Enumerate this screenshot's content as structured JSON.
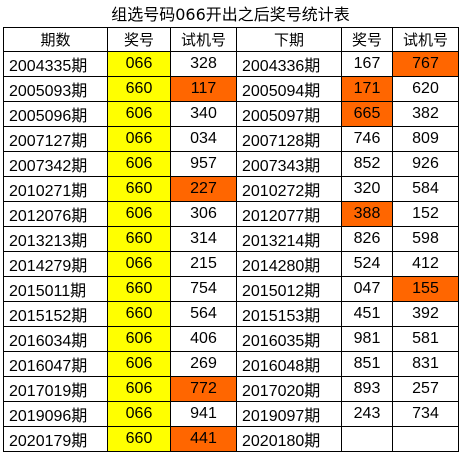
{
  "title": "组选号码066开出之后奖号统计表",
  "headers": [
    "期数",
    "奖号",
    "试机号",
    "下期",
    "奖号",
    "试机号"
  ],
  "colors": {
    "code_highlight": "#ffff00",
    "hit_highlight": "#ff6600"
  },
  "rows": [
    {
      "period": "2004335期",
      "award": "066",
      "trial": "328",
      "trial_hit": false,
      "next_period": "2004336期",
      "next_award": "167",
      "next_award_hit": false,
      "next_trial": "767",
      "next_trial_hit": true
    },
    {
      "period": "2005093期",
      "award": "660",
      "trial": "117",
      "trial_hit": true,
      "next_period": "2005094期",
      "next_award": "171",
      "next_award_hit": true,
      "next_trial": "620",
      "next_trial_hit": false
    },
    {
      "period": "2005096期",
      "award": "606",
      "trial": "340",
      "trial_hit": false,
      "next_period": "2005097期",
      "next_award": "665",
      "next_award_hit": true,
      "next_trial": "382",
      "next_trial_hit": false
    },
    {
      "period": "2007127期",
      "award": "066",
      "trial": "034",
      "trial_hit": false,
      "next_period": "2007128期",
      "next_award": "746",
      "next_award_hit": false,
      "next_trial": "809",
      "next_trial_hit": false
    },
    {
      "period": "2007342期",
      "award": "606",
      "trial": "957",
      "trial_hit": false,
      "next_period": "2007343期",
      "next_award": "852",
      "next_award_hit": false,
      "next_trial": "926",
      "next_trial_hit": false
    },
    {
      "period": "2010271期",
      "award": "660",
      "trial": "227",
      "trial_hit": true,
      "next_period": "2010272期",
      "next_award": "320",
      "next_award_hit": false,
      "next_trial": "584",
      "next_trial_hit": false
    },
    {
      "period": "2012076期",
      "award": "606",
      "trial": "306",
      "trial_hit": false,
      "next_period": "2012077期",
      "next_award": "388",
      "next_award_hit": true,
      "next_trial": "152",
      "next_trial_hit": false
    },
    {
      "period": "2013213期",
      "award": "660",
      "trial": "314",
      "trial_hit": false,
      "next_period": "2013214期",
      "next_award": "826",
      "next_award_hit": false,
      "next_trial": "598",
      "next_trial_hit": false
    },
    {
      "period": "2014279期",
      "award": "066",
      "trial": "215",
      "trial_hit": false,
      "next_period": "2014280期",
      "next_award": "524",
      "next_award_hit": false,
      "next_trial": "412",
      "next_trial_hit": false
    },
    {
      "period": "2015011期",
      "award": "660",
      "trial": "754",
      "trial_hit": false,
      "next_period": "2015012期",
      "next_award": "047",
      "next_award_hit": false,
      "next_trial": "155",
      "next_trial_hit": true
    },
    {
      "period": "2015152期",
      "award": "660",
      "trial": "564",
      "trial_hit": false,
      "next_period": "2015153期",
      "next_award": "451",
      "next_award_hit": false,
      "next_trial": "392",
      "next_trial_hit": false
    },
    {
      "period": "2016034期",
      "award": "606",
      "trial": "406",
      "trial_hit": false,
      "next_period": "2016035期",
      "next_award": "981",
      "next_award_hit": false,
      "next_trial": "581",
      "next_trial_hit": false
    },
    {
      "period": "2016047期",
      "award": "606",
      "trial": "269",
      "trial_hit": false,
      "next_period": "2016048期",
      "next_award": "851",
      "next_award_hit": false,
      "next_trial": "831",
      "next_trial_hit": false
    },
    {
      "period": "2017019期",
      "award": "606",
      "trial": "772",
      "trial_hit": true,
      "next_period": "2017020期",
      "next_award": "893",
      "next_award_hit": false,
      "next_trial": "257",
      "next_trial_hit": false
    },
    {
      "period": "2019096期",
      "award": "066",
      "trial": "941",
      "trial_hit": false,
      "next_period": "2019097期",
      "next_award": "243",
      "next_award_hit": false,
      "next_trial": "734",
      "next_trial_hit": false
    },
    {
      "period": "2020179期",
      "award": "660",
      "trial": "441",
      "trial_hit": true,
      "next_period": "2020180期",
      "next_award": "",
      "next_award_hit": false,
      "next_trial": "",
      "next_trial_hit": false
    }
  ]
}
